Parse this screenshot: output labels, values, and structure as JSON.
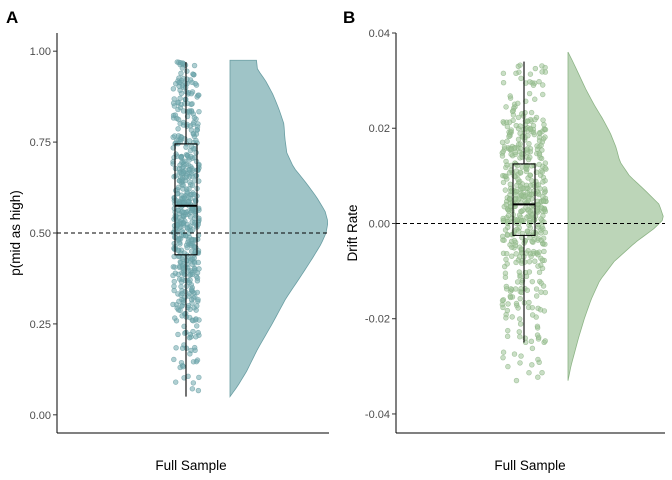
{
  "colors": {
    "panel_a_fill": "#9fc4c7",
    "panel_a_point": "#6ea8ad",
    "panel_a_stroke": "#6a9ea3",
    "panel_b_fill": "#bcd5b8",
    "panel_b_point": "#9cc296",
    "panel_b_stroke": "#8db486"
  },
  "chart_data": [
    {
      "type": "raincloud",
      "panel_label": "A",
      "xlabel": "Full Sample",
      "ylabel": "p(mid as high)",
      "ylim": [
        -0.05,
        1.05
      ],
      "yticks": [
        0.0,
        0.25,
        0.5,
        0.75,
        1.0
      ],
      "ytick_labels": [
        "0.00",
        "0.25",
        "0.50",
        "0.75",
        "1.00"
      ],
      "reference_line": 0.5,
      "n_points": 520,
      "points_range": [
        0.04,
        0.98
      ],
      "box": {
        "whisker_low": 0.05,
        "q1": 0.44,
        "median": 0.575,
        "q3": 0.745,
        "whisker_high": 0.97
      },
      "density": {
        "y": [
          0.05,
          0.08,
          0.12,
          0.18,
          0.25,
          0.32,
          0.38,
          0.43,
          0.47,
          0.5,
          0.53,
          0.56,
          0.6,
          0.64,
          0.68,
          0.72,
          0.76,
          0.8,
          0.84,
          0.88,
          0.92,
          0.95,
          0.975
        ],
        "density": [
          0.0,
          0.08,
          0.17,
          0.28,
          0.43,
          0.57,
          0.72,
          0.84,
          0.93,
          0.98,
          1.0,
          0.97,
          0.88,
          0.77,
          0.65,
          0.58,
          0.56,
          0.55,
          0.5,
          0.44,
          0.36,
          0.28,
          0.27
        ]
      }
    },
    {
      "type": "raincloud",
      "panel_label": "B",
      "xlabel": "Full Sample",
      "ylabel": "Drift Rate",
      "ylim": [
        -0.044,
        0.04
      ],
      "yticks": [
        -0.04,
        -0.02,
        0.0,
        0.02,
        0.04
      ],
      "ytick_labels": [
        "-0.04",
        "-0.02",
        "0.00",
        "0.02",
        "0.04"
      ],
      "reference_line": 0.0,
      "n_points": 520,
      "points_range": [
        -0.033,
        0.036
      ],
      "box": {
        "whisker_low": -0.025,
        "q1": -0.0025,
        "median": 0.004,
        "q3": 0.0125,
        "whisker_high": 0.034
      },
      "density": {
        "y": [
          -0.033,
          -0.03,
          -0.027,
          -0.024,
          -0.02,
          -0.016,
          -0.012,
          -0.008,
          -0.004,
          -0.001,
          0.001,
          0.004,
          0.007,
          0.01,
          0.013,
          0.016,
          0.019,
          0.022,
          0.025,
          0.028,
          0.031,
          0.034,
          0.036
        ],
        "density": [
          0.0,
          0.03,
          0.07,
          0.11,
          0.17,
          0.24,
          0.33,
          0.48,
          0.7,
          0.9,
          1.0,
          0.95,
          0.8,
          0.64,
          0.54,
          0.5,
          0.44,
          0.36,
          0.27,
          0.19,
          0.12,
          0.05,
          0.0
        ]
      }
    }
  ]
}
